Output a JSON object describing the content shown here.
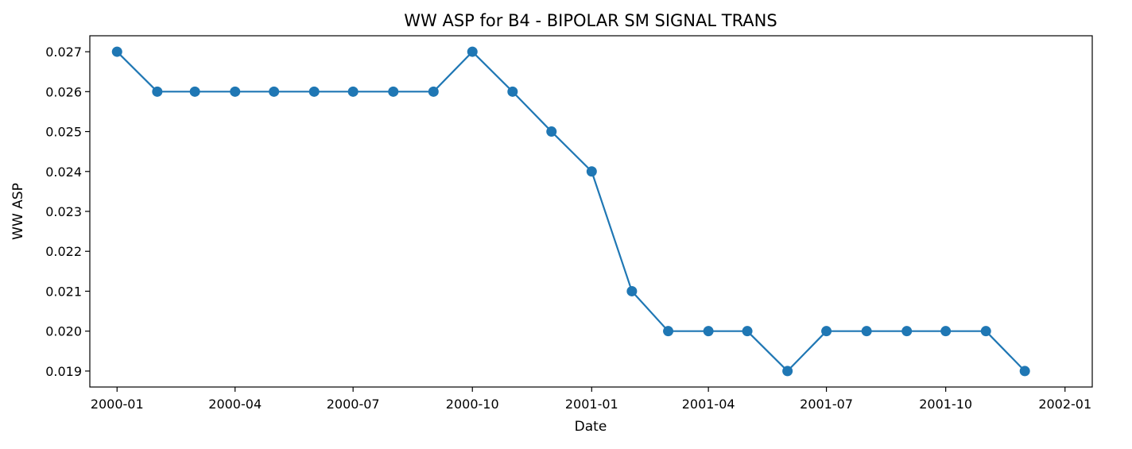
{
  "chart_data": {
    "type": "line",
    "title": "WW ASP for B4 - BIPOLAR SM SIGNAL TRANS",
    "xlabel": "Date",
    "ylabel": "WW ASP",
    "x": [
      "2000-01",
      "2000-02",
      "2000-03",
      "2000-04",
      "2000-05",
      "2000-06",
      "2000-07",
      "2000-08",
      "2000-09",
      "2000-10",
      "2000-11",
      "2000-12",
      "2001-01",
      "2001-02",
      "2001-03",
      "2001-04",
      "2001-05",
      "2001-06",
      "2001-07",
      "2001-08",
      "2001-09",
      "2001-10",
      "2001-11",
      "2001-12"
    ],
    "series": [
      {
        "values": [
          0.027,
          0.026,
          0.026,
          0.026,
          0.026,
          0.026,
          0.026,
          0.026,
          0.026,
          0.027,
          0.026,
          0.025,
          0.024,
          0.021,
          0.02,
          0.02,
          0.02,
          0.019,
          0.02,
          0.02,
          0.02,
          0.02,
          0.02,
          0.019
        ],
        "color": "#1f77b4"
      }
    ],
    "x_ticks": [
      "2000-01",
      "2000-04",
      "2000-07",
      "2000-10",
      "2001-01",
      "2001-04",
      "2001-07",
      "2001-10",
      "2002-01"
    ],
    "y_ticks": [
      "0.019",
      "0.020",
      "0.021",
      "0.022",
      "0.023",
      "0.024",
      "0.025",
      "0.026",
      "0.027"
    ],
    "ylim": [
      0.0186,
      0.0274
    ],
    "xlim": [
      "1999-12-11",
      "2002-01-22"
    ],
    "grid": false,
    "legend": "none",
    "marker": "circle"
  }
}
